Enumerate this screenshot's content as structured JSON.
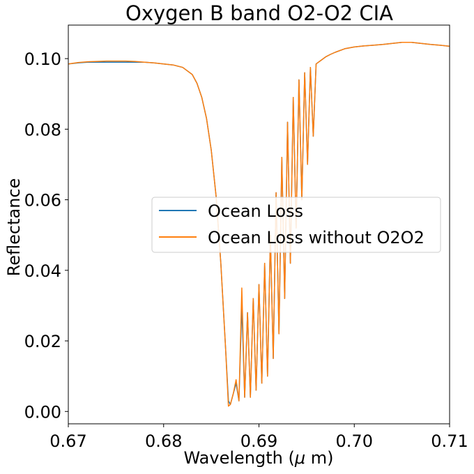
{
  "chart_data": {
    "type": "line",
    "title": "Oxygen B band O2-O2 CIA",
    "xlabel": "Wavelength ($\\mu$ m)",
    "ylabel": "Reflectance",
    "xlim": [
      0.67,
      0.71
    ],
    "ylim": [
      -0.0035,
      0.1095
    ],
    "x_ticks": [
      0.67,
      0.68,
      0.69,
      0.7,
      0.71
    ],
    "x_tick_labels": [
      "0.67",
      "0.68",
      "0.69",
      "0.70",
      "0.71"
    ],
    "y_ticks": [
      0.0,
      0.02,
      0.04,
      0.06,
      0.08,
      0.1
    ],
    "y_tick_labels": [
      "0.00",
      "0.02",
      "0.04",
      "0.06",
      "0.08",
      "0.10"
    ],
    "grid": false,
    "legend_placement": "center-right",
    "series": [
      {
        "name": "Ocean Loss",
        "color": "#1f77b4",
        "x": [
          0.67,
          0.671,
          0.672,
          0.673,
          0.674,
          0.675,
          0.676,
          0.677,
          0.678,
          0.679,
          0.68,
          0.681,
          0.682,
          0.683,
          0.6835,
          0.684,
          0.6845,
          0.685,
          0.6855,
          0.686,
          0.6865,
          0.6868,
          0.687,
          0.6873,
          0.6876,
          0.6879,
          0.6882,
          0.6885,
          0.6888,
          0.6891,
          0.6894,
          0.6897,
          0.69,
          0.6903,
          0.6906,
          0.6909,
          0.6912,
          0.6915,
          0.6918,
          0.6921,
          0.6924,
          0.6927,
          0.693,
          0.6933,
          0.6936,
          0.6939,
          0.6942,
          0.6945,
          0.6948,
          0.6951,
          0.6954,
          0.6957,
          0.696,
          0.6965,
          0.697,
          0.6975,
          0.698,
          0.699,
          0.7,
          0.701,
          0.702,
          0.703,
          0.704,
          0.705,
          0.706,
          0.707,
          0.708,
          0.709,
          0.71
        ],
        "y": [
          0.0985,
          0.0988,
          0.099,
          0.099,
          0.099,
          0.099,
          0.099,
          0.099,
          0.099,
          0.0988,
          0.0985,
          0.0982,
          0.0975,
          0.0955,
          0.093,
          0.089,
          0.083,
          0.074,
          0.061,
          0.042,
          0.018,
          0.003,
          0.002,
          0.005,
          0.008,
          0.003,
          0.03,
          0.004,
          0.028,
          0.004,
          0.032,
          0.006,
          0.036,
          0.008,
          0.042,
          0.01,
          0.05,
          0.015,
          0.062,
          0.022,
          0.072,
          0.032,
          0.082,
          0.042,
          0.089,
          0.052,
          0.094,
          0.06,
          0.096,
          0.07,
          0.0975,
          0.078,
          0.0985,
          0.0995,
          0.1005,
          0.1012,
          0.1018,
          0.1028,
          0.1033,
          0.1036,
          0.1038,
          0.104,
          0.1043,
          0.1046,
          0.1046,
          0.1043,
          0.104,
          0.1038,
          0.1035
        ]
      },
      {
        "name": "Ocean Loss without O2O2",
        "color": "#ff7f0e",
        "x": [
          0.67,
          0.671,
          0.672,
          0.673,
          0.674,
          0.675,
          0.676,
          0.677,
          0.678,
          0.679,
          0.68,
          0.681,
          0.682,
          0.683,
          0.6835,
          0.684,
          0.6845,
          0.685,
          0.6855,
          0.686,
          0.6865,
          0.6868,
          0.687,
          0.6873,
          0.6876,
          0.6879,
          0.6882,
          0.6885,
          0.6888,
          0.6891,
          0.6894,
          0.6897,
          0.69,
          0.6903,
          0.6906,
          0.6909,
          0.6912,
          0.6915,
          0.6918,
          0.6921,
          0.6924,
          0.6927,
          0.693,
          0.6933,
          0.6936,
          0.6939,
          0.6942,
          0.6945,
          0.6948,
          0.6951,
          0.6954,
          0.6957,
          0.696,
          0.6965,
          0.697,
          0.6975,
          0.698,
          0.699,
          0.7,
          0.701,
          0.702,
          0.703,
          0.704,
          0.705,
          0.706,
          0.707,
          0.708,
          0.709,
          0.71
        ],
        "y": [
          0.0985,
          0.0989,
          0.0991,
          0.0992,
          0.0993,
          0.0993,
          0.0993,
          0.0992,
          0.099,
          0.0988,
          0.0985,
          0.0982,
          0.0975,
          0.0955,
          0.093,
          0.089,
          0.083,
          0.074,
          0.061,
          0.042,
          0.018,
          0.0015,
          0.002,
          0.005,
          0.009,
          0.003,
          0.035,
          0.004,
          0.028,
          0.004,
          0.032,
          0.006,
          0.036,
          0.008,
          0.042,
          0.01,
          0.05,
          0.015,
          0.062,
          0.022,
          0.072,
          0.032,
          0.082,
          0.042,
          0.089,
          0.052,
          0.094,
          0.06,
          0.096,
          0.07,
          0.0975,
          0.078,
          0.0985,
          0.0995,
          0.1005,
          0.1012,
          0.1018,
          0.1028,
          0.1033,
          0.1036,
          0.1038,
          0.104,
          0.1043,
          0.1046,
          0.1046,
          0.1043,
          0.104,
          0.1038,
          0.1035
        ]
      }
    ]
  }
}
